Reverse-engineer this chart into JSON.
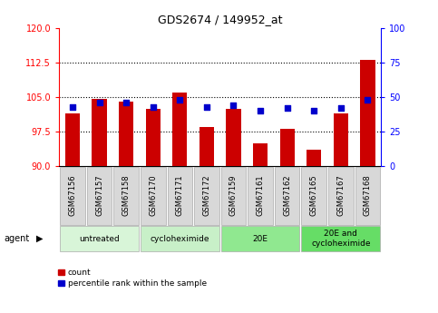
{
  "title": "GDS2674 / 149952_at",
  "samples": [
    "GSM67156",
    "GSM67157",
    "GSM67158",
    "GSM67170",
    "GSM67171",
    "GSM67172",
    "GSM67159",
    "GSM67161",
    "GSM67162",
    "GSM67165",
    "GSM67167",
    "GSM67168"
  ],
  "counts": [
    101.5,
    104.5,
    104.0,
    102.5,
    106.0,
    98.5,
    102.5,
    95.0,
    98.0,
    93.5,
    101.5,
    113.0
  ],
  "percentile_ranks": [
    43,
    46,
    46,
    43,
    48,
    43,
    44,
    40,
    42,
    40,
    42,
    48
  ],
  "ylim_left": [
    90,
    120
  ],
  "ylim_right": [
    0,
    100
  ],
  "yticks_left": [
    90,
    97.5,
    105,
    112.5,
    120
  ],
  "yticks_right": [
    0,
    25,
    50,
    75,
    100
  ],
  "bar_color": "#cc0000",
  "dot_color": "#0000cc",
  "bar_baseline": 90,
  "groups": [
    {
      "label": "untreated",
      "start": 0,
      "end": 3
    },
    {
      "label": "cycloheximide",
      "start": 3,
      "end": 6
    },
    {
      "label": "20E",
      "start": 6,
      "end": 9
    },
    {
      "label": "20E and\ncycloheximide",
      "start": 9,
      "end": 12
    }
  ],
  "group_colors": [
    "#d8f5d8",
    "#c8f0c8",
    "#90e890",
    "#66dd66"
  ],
  "label_bg_color": "#d8d8d8",
  "label_border_color": "#aaaaaa",
  "agent_label": "agent",
  "legend_count_label": "count",
  "legend_pct_label": "percentile rank within the sample",
  "plot_bg": "white"
}
